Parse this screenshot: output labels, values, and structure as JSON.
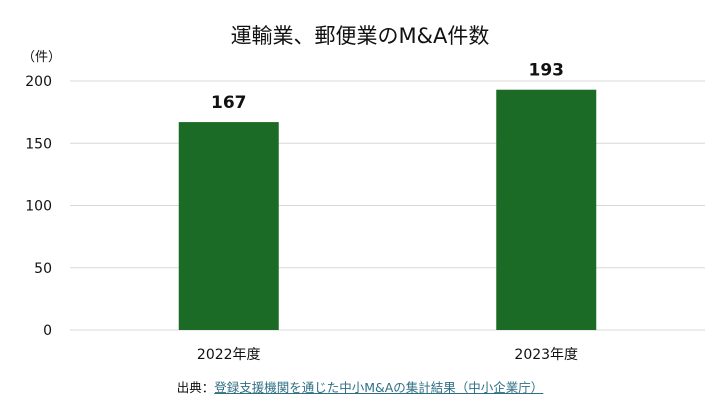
{
  "chart_data": {
    "type": "bar",
    "title": "運輸業、郵便業のM&A件数",
    "ylabel": "（件）",
    "xlabel": "",
    "categories": [
      "2022年度",
      "2023年度"
    ],
    "values": [
      167,
      193
    ],
    "data_labels": [
      "167",
      "193"
    ],
    "ylim": [
      0,
      200
    ],
    "yticks": [
      0,
      50,
      100,
      150,
      200
    ],
    "grid": true,
    "legend": "none",
    "bar_color": "#1b6b27"
  },
  "source": {
    "prefix": "出典：",
    "link_text": "登録支援機関を通じた中小M&Aの集計結果（中小企業庁）",
    "link_color": "#2f6f84"
  }
}
